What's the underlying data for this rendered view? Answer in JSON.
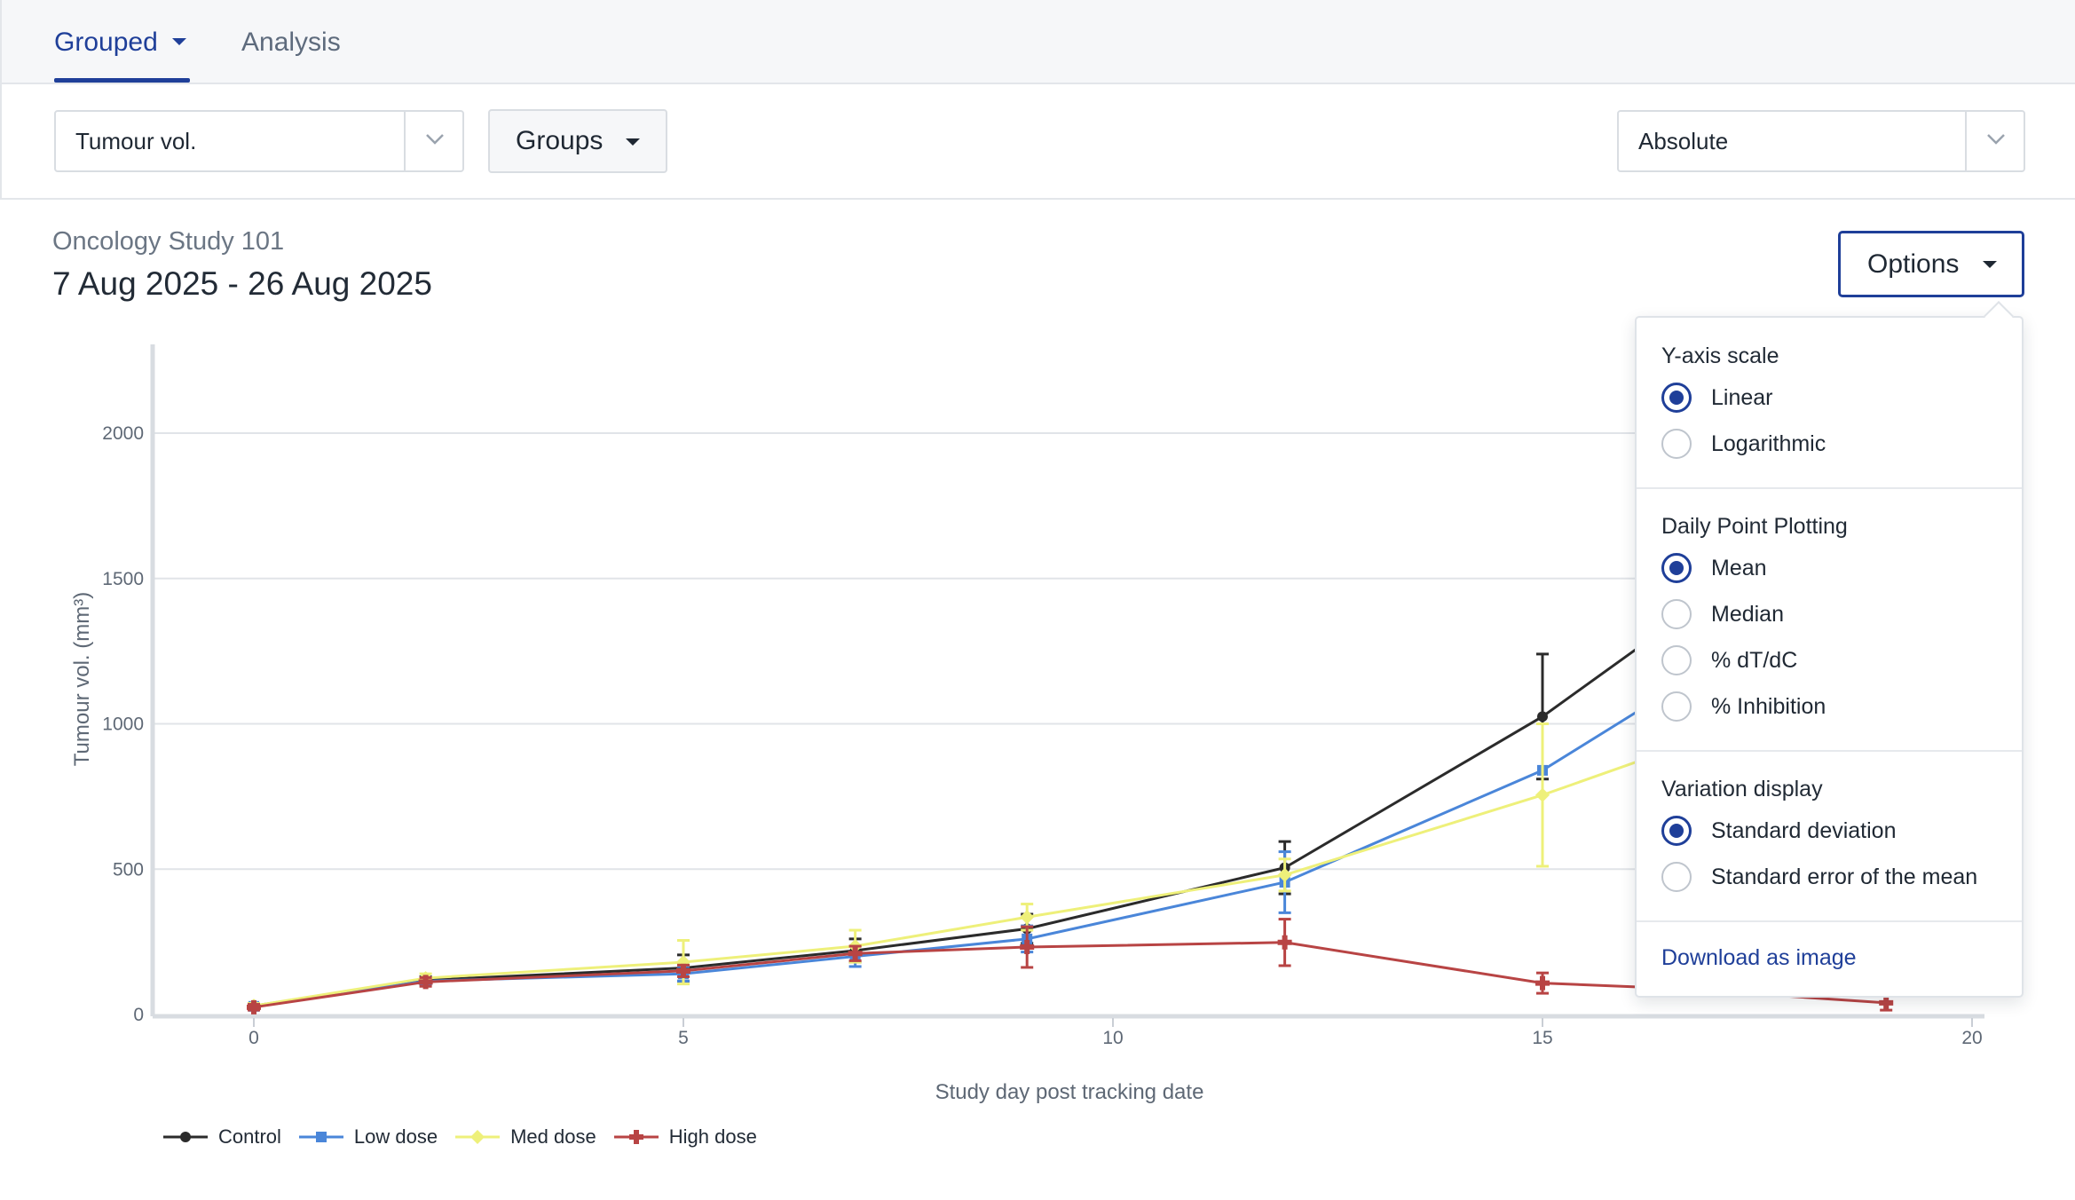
{
  "tabs": [
    {
      "label": "Grouped",
      "active": true
    },
    {
      "label": "Analysis",
      "active": false
    }
  ],
  "controls": {
    "metric_select": "Tumour vol.",
    "groups_button": "Groups",
    "scale_select": "Absolute"
  },
  "heading": {
    "study_name": "Oncology Study 101",
    "date_range": "7 Aug 2025 - 26 Aug 2025"
  },
  "options_button": "Options",
  "options_panel": {
    "sections": [
      {
        "title": "Y-axis scale",
        "options": [
          {
            "label": "Linear",
            "selected": true
          },
          {
            "label": "Logarithmic",
            "selected": false
          }
        ]
      },
      {
        "title": "Daily Point Plotting",
        "options": [
          {
            "label": "Mean",
            "selected": true
          },
          {
            "label": "Median",
            "selected": false
          },
          {
            "label": "% dT/dC",
            "selected": false
          },
          {
            "label": "% Inhibition",
            "selected": false
          }
        ]
      },
      {
        "title": "Variation display",
        "options": [
          {
            "label": "Standard deviation",
            "selected": true
          },
          {
            "label": "Standard error of the mean",
            "selected": false
          }
        ]
      }
    ],
    "download_link": "Download as image"
  },
  "colors": {
    "accent": "#1f3f99",
    "control": "#2b2b2b",
    "low_dose": "#4a86d9",
    "med_dose": "#eef07a",
    "high_dose": "#b84444"
  },
  "chart_data": {
    "type": "line",
    "xlabel": "Study day post tracking date",
    "ylabel": "Tumour vol. (mm³)",
    "xlim": [
      0,
      20
    ],
    "ylim": [
      0,
      2000
    ],
    "xticks": [
      0,
      5,
      10,
      15,
      20
    ],
    "yticks": [
      0,
      500,
      1000,
      1500,
      2000
    ],
    "grid": "horizontal",
    "legend_position": "bottom-left",
    "series": [
      {
        "name": "Control",
        "color": "#2b2b2b",
        "marker": "circle",
        "x": [
          0,
          2,
          5,
          7,
          9,
          12,
          15,
          16.2
        ],
        "y": [
          30,
          118,
          160,
          220,
          295,
          505,
          1025,
          1280
        ],
        "err": [
          8,
          12,
          45,
          40,
          50,
          90,
          215,
          0
        ]
      },
      {
        "name": "Low dose",
        "color": "#4a86d9",
        "marker": "square",
        "x": [
          0,
          2,
          5,
          7,
          9,
          12,
          15,
          16.2
        ],
        "y": [
          28,
          115,
          140,
          200,
          260,
          455,
          840,
          1060
        ],
        "err": [
          8,
          12,
          25,
          35,
          45,
          105,
          0,
          0
        ]
      },
      {
        "name": "Med dose",
        "color": "#eef07a",
        "marker": "diamond",
        "x": [
          0,
          2,
          5,
          7,
          9,
          12,
          15,
          16.2
        ],
        "y": [
          30,
          125,
          180,
          235,
          335,
          480,
          755,
          880
        ],
        "err": [
          8,
          15,
          75,
          55,
          45,
          55,
          245,
          0
        ]
      },
      {
        "name": "High dose",
        "color": "#b84444",
        "marker": "plus",
        "x": [
          0,
          2,
          5,
          7,
          9,
          12,
          15,
          16.5,
          19
        ],
        "y": [
          25,
          112,
          150,
          210,
          232,
          248,
          108,
          90,
          40
        ],
        "err": [
          10,
          15,
          20,
          25,
          70,
          80,
          35,
          0,
          25
        ]
      }
    ]
  }
}
